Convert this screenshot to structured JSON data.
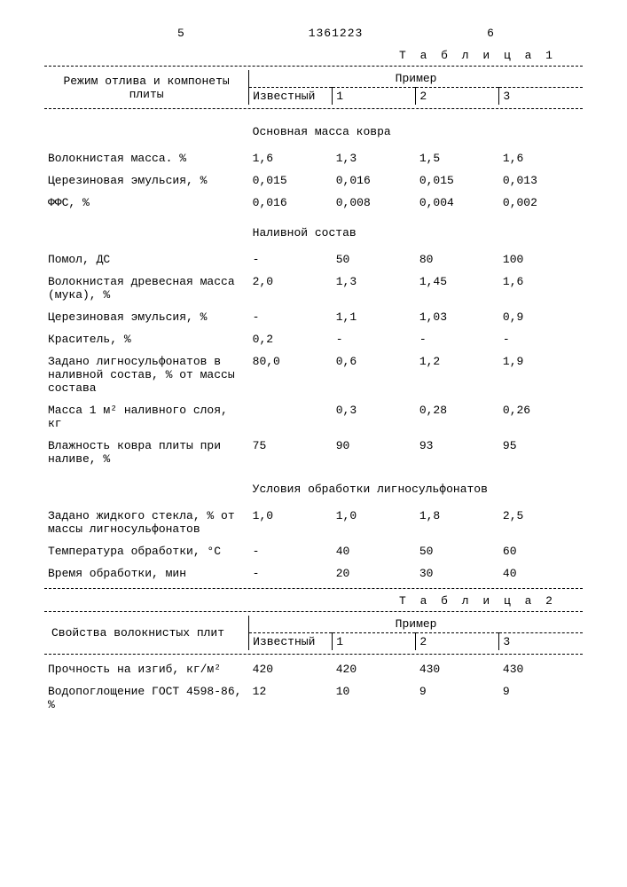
{
  "header": {
    "left_page": "5",
    "patent_number": "1361223",
    "right_page": "6"
  },
  "table1": {
    "caption": "Т а б л и ц а 1",
    "col_label": "Режим отлива и компонеты плиты",
    "col_group": "Пример",
    "cols": [
      "Известный",
      "1",
      "2",
      "3"
    ],
    "sections": [
      {
        "title": "Основная масса ковра",
        "rows": [
          {
            "label": "Волокнистая масса. %",
            "v": [
              "1,6",
              "1,3",
              "1,5",
              "1,6"
            ]
          },
          {
            "label": "Церезиновая эмульсия, %",
            "v": [
              "0,015",
              "0,016",
              "0,015",
              "0,013"
            ]
          },
          {
            "label": "ФФС, %",
            "v": [
              "0,016",
              "0,008",
              "0,004",
              "0,002"
            ]
          }
        ]
      },
      {
        "title": "Наливной состав",
        "rows": [
          {
            "label": "Помол, ДС",
            "v": [
              "-",
              "50",
              "80",
              "100"
            ]
          },
          {
            "label": "Волокнистая древесная масса (мука), %",
            "v": [
              "2,0",
              "1,3",
              "1,45",
              "1,6"
            ]
          },
          {
            "label": "Церезиновая эмульсия, %",
            "v": [
              "-",
              "1,1",
              "1,03",
              "0,9"
            ]
          },
          {
            "label": "Краситель, %",
            "v": [
              "0,2",
              "-",
              "-",
              "-"
            ]
          },
          {
            "label": "Задано лигносульфонатов в наливной состав, % от массы состава",
            "v": [
              "80,0",
              "0,6",
              "1,2",
              "1,9"
            ]
          },
          {
            "label": "Масса 1 м² наливного слоя, кг",
            "v": [
              "",
              "0,3",
              "0,28",
              "0,26"
            ]
          },
          {
            "label": "Влажность ковра плиты при наливе, %",
            "v": [
              "75",
              "90",
              "93",
              "95"
            ]
          }
        ]
      },
      {
        "title": "Условия обработки лигносульфонатов",
        "rows": [
          {
            "label": "Задано жидкого стекла, % от массы лигносульфонатов",
            "v": [
              "1,0",
              "1,0",
              "1,8",
              "2,5"
            ]
          },
          {
            "label": "Температура обработки, °С",
            "v": [
              "-",
              "40",
              "50",
              "60"
            ]
          },
          {
            "label": "Время обработки, мин",
            "v": [
              "-",
              "20",
              "30",
              "40"
            ]
          }
        ]
      }
    ]
  },
  "table2": {
    "caption": "Т а б л и ц а 2",
    "col_label": "Свойства волокнистых плит",
    "col_group": "Пример",
    "cols": [
      "Известный",
      "1",
      "2",
      "3"
    ],
    "rows": [
      {
        "label": "Прочность на изгиб, кг/м²",
        "v": [
          "420",
          "420",
          "430",
          "430"
        ]
      },
      {
        "label": "Водопоглощение ГОСТ 4598-86, %",
        "v": [
          "12",
          "10",
          "9",
          "9"
        ]
      }
    ]
  }
}
